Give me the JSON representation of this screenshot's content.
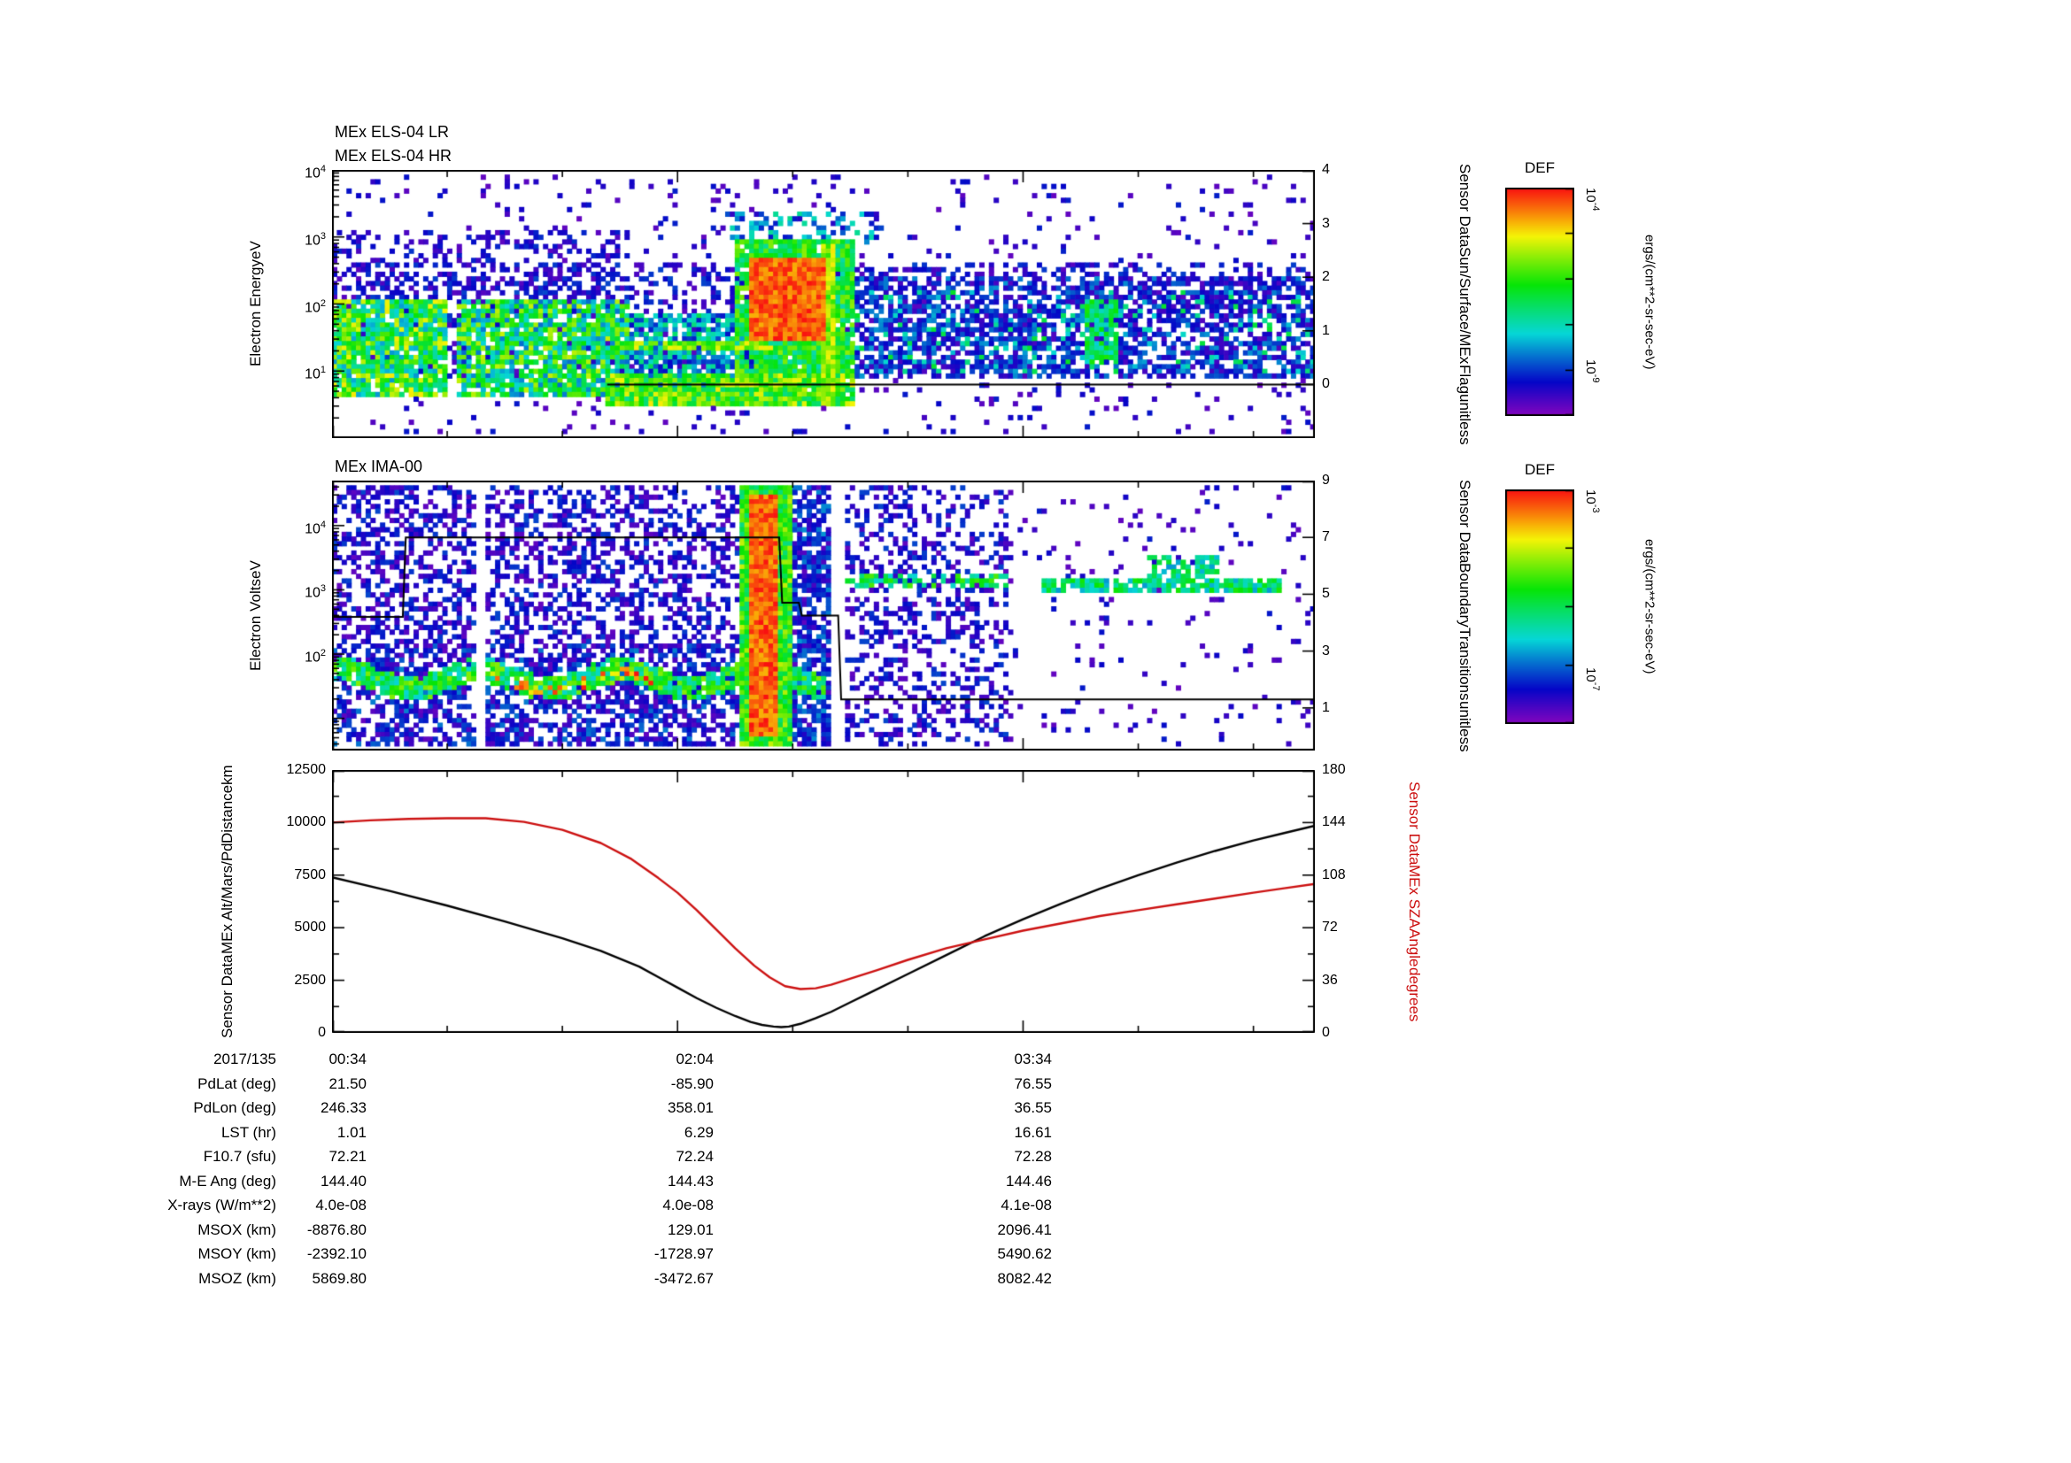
{
  "page": {
    "background": "#ffffff"
  },
  "colors": {
    "axis": "#000000",
    "altitude_line": "#000000",
    "sza_line": "#cc1111",
    "colormap": "rainbow"
  },
  "chart_data": [
    {
      "id": "els",
      "type": "heatmap",
      "title_lines": [
        "MEx ELS-04 LR",
        "MEx ELS-04 HR"
      ],
      "ylabel_lines": [
        "Electron Energy",
        "eV"
      ],
      "y_axis": {
        "scale": "log",
        "exp_range": [
          0,
          4
        ],
        "tick_exps": [
          4,
          3,
          2,
          1
        ]
      },
      "right_axis": {
        "label_lines": [
          "Sensor Data",
          "Sun/Surface/MEx",
          "Flag",
          "unitless"
        ],
        "range": [
          -1,
          4
        ],
        "ticks": [
          4,
          3,
          2,
          1,
          0
        ]
      },
      "x_axis": {
        "range_minutes": [
          0,
          256
        ],
        "major_tick_minutes": [
          0,
          90,
          180
        ],
        "minor_step_minutes": 30,
        "tick_labels": [
          "00:34",
          "02:04",
          "03:34"
        ]
      },
      "overlay_line": {
        "axis": "right",
        "points": [
          [
            0.28,
            0
          ],
          [
            1.0,
            0
          ]
        ]
      },
      "seed": 42,
      "grid": {
        "cols": 205,
        "rows": 58
      },
      "features": [
        {
          "type": "speckle",
          "x": [
            0.0,
            1.0
          ],
          "logy": [
            0.1,
            3.9
          ],
          "density": 0.06,
          "vmin": 0.04,
          "vmax": 0.18
        },
        {
          "type": "speckle",
          "x": [
            0.0,
            1.0
          ],
          "logy": [
            0.9,
            2.6
          ],
          "density": 0.3,
          "vmin": 0.05,
          "vmax": 0.22
        },
        {
          "type": "speckle",
          "x": [
            0.0,
            0.3
          ],
          "logy": [
            2.1,
            3.1
          ],
          "density": 0.25,
          "vmin": 0.05,
          "vmax": 0.2
        },
        {
          "type": "band",
          "x": [
            0.0,
            0.115
          ],
          "logy": [
            0.6,
            2.1
          ],
          "density": 0.9,
          "vmin": 0.3,
          "vmax": 0.8
        },
        {
          "type": "band",
          "x": [
            0.125,
            0.3
          ],
          "logy": [
            0.6,
            2.05
          ],
          "density": 0.85,
          "vmin": 0.25,
          "vmax": 0.75
        },
        {
          "type": "band",
          "x": [
            0.3,
            0.42
          ],
          "logy": [
            0.55,
            1.85
          ],
          "density": 0.75,
          "vmin": 0.15,
          "vmax": 0.5
        },
        {
          "type": "hline",
          "x": [
            0.285,
            0.45
          ],
          "logy": [
            1.32,
            1.48
          ],
          "density": 0.85,
          "vmin": 0.55,
          "vmax": 0.8
        },
        {
          "type": "band",
          "x": [
            0.28,
            0.53
          ],
          "logy": [
            0.45,
            0.95
          ],
          "density": 0.95,
          "vmin": 0.45,
          "vmax": 0.8
        },
        {
          "type": "band",
          "x": [
            0.41,
            0.53
          ],
          "logy": [
            0.9,
            2.95
          ],
          "density": 0.9,
          "vmin": 0.4,
          "vmax": 0.7
        },
        {
          "type": "blob",
          "x": [
            0.425,
            0.5
          ],
          "logy": [
            1.45,
            2.7
          ],
          "density": 1.0,
          "vmin": 0.85,
          "vmax": 1.0
        },
        {
          "type": "speckle",
          "x": [
            0.4,
            0.56
          ],
          "logy": [
            2.9,
            3.4
          ],
          "density": 0.35,
          "vmin": 0.15,
          "vmax": 0.45
        },
        {
          "type": "band",
          "x": [
            0.497,
            0.51
          ],
          "logy": [
            0.5,
            2.9
          ],
          "density": 1.0,
          "vmin": 0.6,
          "vmax": 0.8
        },
        {
          "type": "band",
          "x": [
            0.53,
            1.0
          ],
          "logy": [
            0.9,
            2.4
          ],
          "density": 0.45,
          "vmin": 0.07,
          "vmax": 0.3
        },
        {
          "type": "speckle",
          "x": [
            0.53,
            1.0
          ],
          "logy": [
            1.0,
            2.2
          ],
          "density": 0.1,
          "vmin": 0.3,
          "vmax": 0.55
        },
        {
          "type": "blob",
          "x": [
            0.765,
            0.8
          ],
          "logy": [
            1.1,
            2.1
          ],
          "density": 0.85,
          "vmin": 0.35,
          "vmax": 0.6
        }
      ]
    },
    {
      "id": "ima",
      "type": "heatmap",
      "title_lines": [
        "MEx IMA-00"
      ],
      "ylabel_lines": [
        "Electron Volts",
        "eV"
      ],
      "y_axis": {
        "scale": "log",
        "exp_range": [
          0.5,
          4.7
        ],
        "tick_exps": [
          4,
          3,
          2
        ]
      },
      "right_axis": {
        "label_lines": [
          "Sensor Data",
          "Boundary",
          "Transitions",
          "unitless"
        ],
        "range": [
          -0.5,
          9
        ],
        "ticks": [
          9,
          7,
          5,
          3,
          1
        ]
      },
      "x_axis": {
        "range_minutes": [
          0,
          256
        ],
        "major_tick_minutes": [
          0,
          90,
          180
        ],
        "minor_step_minutes": 30,
        "tick_labels": [
          "00:34",
          "02:04",
          "03:34"
        ]
      },
      "overlay_line": {
        "axis": "right",
        "points": [
          [
            0,
            4.2
          ],
          [
            0.072,
            4.2
          ],
          [
            0.075,
            7
          ],
          [
            0.455,
            7
          ],
          [
            0.458,
            4.7
          ],
          [
            0.475,
            4.7
          ],
          [
            0.478,
            4.25
          ],
          [
            0.515,
            4.25
          ],
          [
            0.518,
            1.3
          ],
          [
            1.0,
            1.3
          ]
        ]
      },
      "seed": 7,
      "grid": {
        "cols": 205,
        "rows": 58
      },
      "features": [
        {
          "type": "speckle",
          "x": [
            0.0,
            0.505
          ],
          "logy": [
            0.6,
            4.65
          ],
          "density": 0.42,
          "vmin": 0.04,
          "vmax": 0.22
        },
        {
          "type": "speckle",
          "x": [
            0.0,
            0.505
          ],
          "logy": [
            0.6,
            2.2
          ],
          "density": 0.25,
          "vmin": 0.05,
          "vmax": 0.28
        },
        {
          "type": "band",
          "x": [
            0.0,
            0.5
          ],
          "logy": [
            1.42,
            1.8
          ],
          "density": 0.9,
          "vmin": 0.35,
          "vmax": 0.7,
          "wave": {
            "amp": 0.14,
            "freq": 7,
            "phase": 1.2
          }
        },
        {
          "type": "hline",
          "x": [
            0.16,
            0.33
          ],
          "logy": [
            1.48,
            1.66
          ],
          "density": 0.35,
          "vmin": 0.75,
          "vmax": 1.0,
          "wave": {
            "amp": 0.14,
            "freq": 7,
            "phase": 1.2
          }
        },
        {
          "type": "band",
          "x": [
            0.413,
            0.468
          ],
          "logy": [
            0.6,
            4.65
          ],
          "density": 1.0,
          "vmin": 0.45,
          "vmax": 0.75
        },
        {
          "type": "band",
          "x": [
            0.426,
            0.452
          ],
          "logy": [
            0.7,
            4.5
          ],
          "density": 1.0,
          "vmin": 0.85,
          "vmax": 1.0
        },
        {
          "type": "speckle",
          "x": [
            0.468,
            0.505
          ],
          "logy": [
            0.6,
            4.65
          ],
          "density": 0.5,
          "vmin": 0.08,
          "vmax": 0.3
        },
        {
          "type": "speckle",
          "x": [
            0.52,
            0.69
          ],
          "logy": [
            0.6,
            4.65
          ],
          "density": 0.3,
          "vmin": 0.04,
          "vmax": 0.22
        },
        {
          "type": "hline",
          "x": [
            0.52,
            0.69
          ],
          "logy": [
            3.0,
            3.22
          ],
          "density": 0.55,
          "vmin": 0.35,
          "vmax": 0.65
        },
        {
          "type": "speckle",
          "x": [
            0.69,
            1.0
          ],
          "logy": [
            0.6,
            4.65
          ],
          "density": 0.05,
          "vmin": 0.04,
          "vmax": 0.18
        },
        {
          "type": "hline",
          "x": [
            0.72,
            0.965
          ],
          "logy": [
            2.98,
            3.18
          ],
          "density": 0.85,
          "vmin": 0.3,
          "vmax": 0.6
        },
        {
          "type": "blob",
          "x": [
            0.83,
            0.9
          ],
          "logy": [
            3.18,
            3.55
          ],
          "density": 0.6,
          "vmin": 0.3,
          "vmax": 0.55
        },
        {
          "type": "clear",
          "x": [
            0.147,
            0.158
          ],
          "logy": [
            0.0,
            5.0
          ]
        },
        {
          "type": "clear",
          "x": [
            0.505,
            0.52
          ],
          "logy": [
            0.0,
            5.0
          ]
        }
      ]
    },
    {
      "id": "timeseries",
      "type": "line",
      "left_axis": {
        "label_lines": [
          "Sensor Data",
          "MEx Alt/Mars/Pd",
          "Distance",
          "km"
        ],
        "range": [
          0,
          12500
        ],
        "ticks": [
          12500,
          10000,
          7500,
          5000,
          2500,
          0
        ]
      },
      "right_axis": {
        "label_lines": [
          "Sensor Data",
          "MEx SZA",
          "Angle",
          "degrees"
        ],
        "range": [
          0,
          180
        ],
        "ticks": [
          180,
          144,
          108,
          72,
          36,
          0
        ]
      },
      "x_axis": {
        "range_minutes": [
          0,
          256
        ],
        "major_tick_minutes": [
          0,
          90,
          180
        ],
        "minor_step_minutes": 30,
        "tick_labels": [
          "00:34",
          "02:04",
          "03:34"
        ]
      },
      "series": [
        {
          "name": "MEx Alt/Mars/Pd Distance (km)",
          "axis": "left",
          "color": "#000000",
          "points": [
            [
              0,
              7400
            ],
            [
              15,
              6750
            ],
            [
              30,
              6050
            ],
            [
              45,
              5300
            ],
            [
              60,
              4500
            ],
            [
              70,
              3900
            ],
            [
              80,
              3150
            ],
            [
              85,
              2650
            ],
            [
              90,
              2150
            ],
            [
              95,
              1650
            ],
            [
              100,
              1200
            ],
            [
              105,
              800
            ],
            [
              109,
              520
            ],
            [
              112,
              380
            ],
            [
              115,
              300
            ],
            [
              117,
              275
            ],
            [
              119,
              300
            ],
            [
              122,
              430
            ],
            [
              126,
              700
            ],
            [
              130,
              1000
            ],
            [
              135,
              1450
            ],
            [
              140,
              1900
            ],
            [
              150,
              2800
            ],
            [
              160,
              3700
            ],
            [
              170,
              4600
            ],
            [
              180,
              5400
            ],
            [
              190,
              6150
            ],
            [
              200,
              6850
            ],
            [
              210,
              7500
            ],
            [
              220,
              8100
            ],
            [
              230,
              8650
            ],
            [
              240,
              9150
            ],
            [
              248,
              9500
            ],
            [
              256,
              9850
            ]
          ]
        },
        {
          "name": "MEx SZA Angle (degrees)",
          "axis": "right",
          "color": "#cc1111",
          "points": [
            [
              0,
              144
            ],
            [
              10,
              145.5
            ],
            [
              20,
              146.5
            ],
            [
              30,
              147
            ],
            [
              40,
              147
            ],
            [
              50,
              144.5
            ],
            [
              60,
              139
            ],
            [
              70,
              130
            ],
            [
              78,
              119
            ],
            [
              85,
              106
            ],
            [
              90,
              96
            ],
            [
              95,
              84
            ],
            [
              100,
              71
            ],
            [
              105,
              58
            ],
            [
              110,
              46
            ],
            [
              114,
              38
            ],
            [
              118,
              32
            ],
            [
              122,
              30
            ],
            [
              126,
              30.5
            ],
            [
              130,
              33
            ],
            [
              136,
              38
            ],
            [
              142,
              43
            ],
            [
              150,
              50
            ],
            [
              160,
              58
            ],
            [
              170,
              64
            ],
            [
              180,
              70
            ],
            [
              190,
              75
            ],
            [
              200,
              80
            ],
            [
              210,
              84
            ],
            [
              220,
              88
            ],
            [
              230,
              92
            ],
            [
              240,
              96
            ],
            [
              248,
              99
            ],
            [
              256,
              102
            ]
          ]
        }
      ]
    }
  ],
  "colorbars": [
    {
      "title": "DEF",
      "top_label": "10^-4",
      "bottom_label": "10^-9",
      "unit": "ergs/(cm**2-sr-sec-eV)",
      "decades": 5
    },
    {
      "title": "DEF",
      "top_label": "10^-3",
      "bottom_label": "10^-7",
      "unit": "ergs/(cm**2-sr-sec-eV)",
      "decades": 4
    }
  ],
  "table": {
    "rows": [
      {
        "label": "2017/135",
        "values": [
          "00:34",
          "02:04",
          "03:34"
        ]
      },
      {
        "label": "PdLat (deg)",
        "values": [
          "21.50",
          "-85.90",
          "76.55"
        ]
      },
      {
        "label": "PdLon (deg)",
        "values": [
          "246.33",
          "358.01",
          "36.55"
        ]
      },
      {
        "label": "LST (hr)",
        "values": [
          "1.01",
          "6.29",
          "16.61"
        ]
      },
      {
        "label": "F10.7 (sfu)",
        "values": [
          "72.21",
          "72.24",
          "72.28"
        ]
      },
      {
        "label": "M-E Ang (deg)",
        "values": [
          "144.40",
          "144.43",
          "144.46"
        ]
      },
      {
        "label": "X-rays (W/m**2)",
        "values": [
          "4.0e-08",
          "4.0e-08",
          "4.1e-08"
        ]
      },
      {
        "label": "MSOX (km)",
        "values": [
          "-8876.80",
          "129.01",
          "2096.41"
        ]
      },
      {
        "label": "MSOY (km)",
        "values": [
          "-2392.10",
          "-1728.97",
          "5490.62"
        ]
      },
      {
        "label": "MSOZ (km)",
        "values": [
          "5869.80",
          "-3472.67",
          "8082.42"
        ]
      }
    ]
  }
}
